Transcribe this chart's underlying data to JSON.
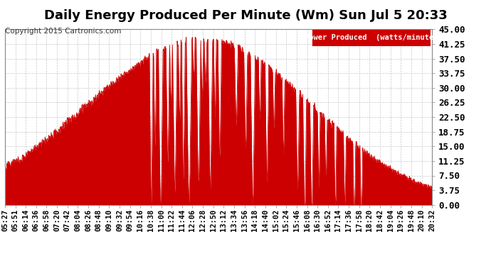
{
  "title": "Daily Energy Produced Per Minute (Wm) Sun Jul 5 20:33",
  "copyright": "Copyright 2015 Cartronics.com",
  "legend_label": "Power Produced  (watts/minute)",
  "legend_bg": "#cc0000",
  "legend_text_color": "#ffffff",
  "line_color": "#cc0000",
  "fill_color": "#cc0000",
  "background_color": "#ffffff",
  "grid_color": "#c8c8c8",
  "ylim": [
    0,
    45.0
  ],
  "yticks": [
    0.0,
    3.75,
    7.5,
    11.25,
    15.0,
    18.75,
    22.5,
    26.25,
    30.0,
    33.75,
    37.5,
    41.25,
    45.0
  ],
  "xtick_labels": [
    "05:27",
    "05:51",
    "06:14",
    "06:36",
    "06:58",
    "07:20",
    "07:42",
    "08:04",
    "08:26",
    "08:48",
    "09:10",
    "09:32",
    "09:54",
    "10:16",
    "10:38",
    "11:00",
    "11:22",
    "11:44",
    "12:06",
    "12:28",
    "12:50",
    "13:12",
    "13:34",
    "13:56",
    "14:18",
    "14:40",
    "15:02",
    "15:24",
    "15:46",
    "16:08",
    "16:30",
    "16:52",
    "17:14",
    "17:36",
    "17:58",
    "18:20",
    "18:42",
    "19:04",
    "19:26",
    "19:48",
    "20:10",
    "20:32"
  ],
  "title_fontsize": 13,
  "axis_fontsize": 7.5,
  "copyright_fontsize": 7.5,
  "ytick_fontsize": 9
}
